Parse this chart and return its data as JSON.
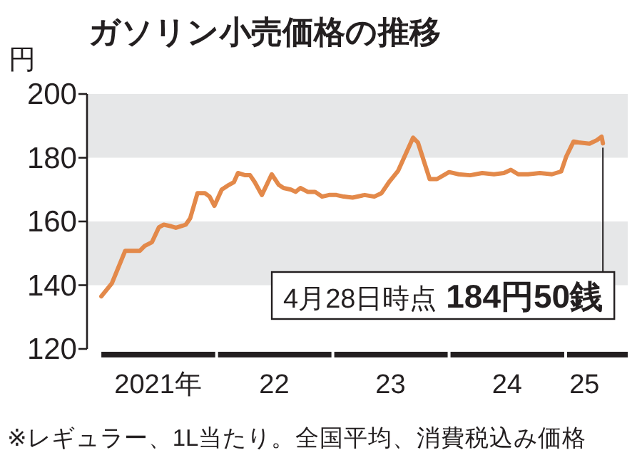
{
  "chart_data": {
    "type": "line",
    "title": "ガソリン小売価格の推移",
    "ylabel": "円",
    "annotations": [
      {
        "text": "4月28日時点 184円50銭",
        "x": "2025-04-28",
        "y": 184.5
      },
      "※レギュラー、1L当たり。全国平均、消費税込み価格"
    ],
    "x": [
      "2021-01-04",
      "2021-02-06",
      "2021-03-20",
      "2021-05-05",
      "2021-05-20",
      "2021-06-12",
      "2021-07-04",
      "2021-07-19",
      "2021-08-11",
      "2021-08-26",
      "2021-09-26",
      "2021-10-10",
      "2021-11-02",
      "2021-11-25",
      "2021-12-10",
      "2021-12-25",
      "2022-01-17",
      "2022-02-09",
      "2022-02-24",
      "2022-03-09",
      "2022-04-01",
      "2022-04-16",
      "2022-05-01",
      "2022-05-23",
      "2022-06-23",
      "2022-07-15",
      "2022-07-30",
      "2022-08-22",
      "2022-09-06",
      "2022-09-21",
      "2022-10-14",
      "2022-11-06",
      "2022-11-28",
      "2022-12-20",
      "2023-01-12",
      "2023-02-04",
      "2023-03-04",
      "2023-04-11",
      "2023-05-11",
      "2023-06-03",
      "2023-06-26",
      "2023-07-25",
      "2023-09-10",
      "2023-09-25",
      "2023-11-01",
      "2023-11-24",
      "2024-01-01",
      "2024-01-31",
      "2024-03-07",
      "2024-04-14",
      "2024-05-21",
      "2024-06-21",
      "2024-07-13",
      "2024-08-05",
      "2024-09-05",
      "2024-10-12",
      "2024-11-19",
      "2024-12-18",
      "2025-01-03",
      "2025-01-26",
      "2025-02-10",
      "2025-03-17",
      "2025-04-09",
      "2025-04-24",
      "2025-04-28"
    ],
    "series": [
      {
        "color": "#e3894a",
        "values": [
          136.5,
          140.6,
          150.8,
          150.8,
          152.3,
          153.5,
          158.2,
          159,
          158.5,
          158,
          159,
          161,
          168.9,
          168.9,
          167.8,
          164.9,
          170,
          171.5,
          172.3,
          175.2,
          174.5,
          174.5,
          172.3,
          168.3,
          174.8,
          171.5,
          170.5,
          170,
          169.3,
          170.5,
          169.3,
          169.3,
          167.8,
          168.3,
          168.3,
          167.8,
          167.5,
          168.3,
          167.8,
          168.9,
          172.3,
          175.9,
          186.3,
          184.8,
          173.3,
          173.3,
          175.5,
          174.8,
          174.5,
          175.2,
          174.8,
          175.2,
          176.2,
          174.8,
          174.8,
          175.2,
          174.8,
          175.7,
          180.4,
          185.1,
          184.8,
          184.4,
          185.5,
          186.6,
          184.5
        ]
      }
    ],
    "xlim": [
      "2020-11-20",
      "2025-07-15"
    ],
    "xticks": [
      {
        "value": "2021-07-01",
        "label": "2021年"
      },
      {
        "value": "2022-07-01",
        "label": "22"
      },
      {
        "value": "2023-07-01",
        "label": "23"
      },
      {
        "value": "2024-07-01",
        "label": "24"
      },
      {
        "value": "2025-03-01",
        "label": "25"
      }
    ],
    "ylim": [
      120,
      200
    ],
    "yticks": [
      120,
      140,
      160,
      180,
      200
    ],
    "bands": [
      {
        "axis": "y",
        "from": 180,
        "to": 200,
        "color": "#e6e7e8"
      },
      {
        "axis": "y",
        "from": 140,
        "to": 160,
        "color": "#e6e7e8"
      }
    ]
  }
}
